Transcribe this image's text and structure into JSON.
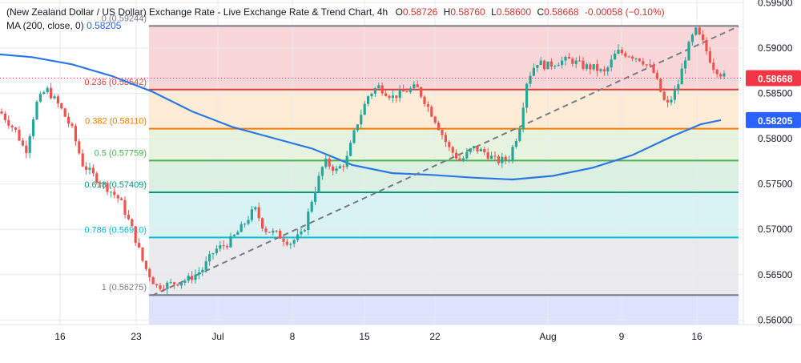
{
  "header": {
    "title": "(New Zealand Dollar / US Dollar) Exchange Rate - Live Exchange Rate & Trend Chart, 4h",
    "open_label": "O",
    "open": "0.58726",
    "high_label": "H",
    "high": "0.58760",
    "low_label": "L",
    "low": "0.58600",
    "close_label": "C",
    "close": "0.58668",
    "change": "-0.00058 (−0.10%)",
    "ma_label": "MA (200, close, 0)",
    "ma_value": "0.58205"
  },
  "colors": {
    "up": "#26a69a",
    "down": "#ef5350",
    "ma": "#2b78e4",
    "trend": "#787b86",
    "price_tag": "#f23645",
    "ma_tag": "#2962ff"
  },
  "chart_data": {
    "type": "candlestick",
    "ylim": [
      0.5595,
      0.5953
    ],
    "y_ticks": [
      "0.59500",
      "0.59000",
      "0.58500",
      "0.58000",
      "0.57500",
      "0.57000",
      "0.56500",
      "0.56000"
    ],
    "x_ticks": [
      "16",
      "23",
      "Jul",
      "8",
      "15",
      "22",
      "Aug",
      "9",
      "16"
    ],
    "grid": true,
    "fib_levels": [
      {
        "ratio": "0",
        "value": 0.59244,
        "label": "0 (0.59244)",
        "color": "#787b86",
        "fill": "#f7c5c8"
      },
      {
        "ratio": "0.236",
        "value": 0.58542,
        "label": "0.236 (0.58542)",
        "color": "#e03c3c",
        "fill": "#fde4c6"
      },
      {
        "ratio": "0.382",
        "value": 0.5811,
        "label": "0.382 (0.58110)",
        "color": "#f57c00",
        "fill": "#dcefd2"
      },
      {
        "ratio": "0.5",
        "value": 0.57759,
        "label": "0.5 (0.57759)",
        "color": "#4caf50",
        "fill": "#cce9d6"
      },
      {
        "ratio": "0.618",
        "value": 0.57409,
        "label": "0.618 (0.57409)",
        "color": "#089981",
        "fill": "#c9eef0"
      },
      {
        "ratio": "0.786",
        "value": 0.5691,
        "label": "0.786 (0.56910)",
        "color": "#00bcd4",
        "fill": "#e3e3e6"
      },
      {
        "ratio": "1",
        "value": 0.56275,
        "label": "1 (0.56275)",
        "color": "#787b86",
        "fill": "#d4dcfc"
      }
    ],
    "price_tag": "0.58668",
    "ma_tag": "0.58205",
    "series": [
      {
        "name": "MA (200, close, 0)",
        "kind": "line",
        "points": [
          [
            0,
            0.5893
          ],
          [
            40,
            0.589
          ],
          [
            90,
            0.5882
          ],
          [
            140,
            0.5869
          ],
          [
            190,
            0.5852
          ],
          [
            240,
            0.583
          ],
          [
            290,
            0.5813
          ],
          [
            340,
            0.5801
          ],
          [
            390,
            0.5789
          ],
          [
            440,
            0.5771
          ],
          [
            490,
            0.5762
          ],
          [
            540,
            0.576
          ],
          [
            590,
            0.5757
          ],
          [
            640,
            0.5755
          ],
          [
            690,
            0.5759
          ],
          [
            740,
            0.5768
          ],
          [
            790,
            0.5782
          ],
          [
            840,
            0.5803
          ],
          [
            875,
            0.5816
          ],
          [
            900,
            0.58205
          ]
        ]
      },
      {
        "name": "Trend",
        "kind": "dashed",
        "points": [
          [
            190,
            0.5627
          ],
          [
            922,
            0.5924
          ]
        ]
      },
      {
        "name": "Price",
        "kind": "candles",
        "anchors": [
          [
            0,
            0.583
          ],
          [
            20,
            0.5808
          ],
          [
            32,
            0.5785
          ],
          [
            45,
            0.5838
          ],
          [
            58,
            0.5855
          ],
          [
            75,
            0.5835
          ],
          [
            90,
            0.581
          ],
          [
            103,
            0.5772
          ],
          [
            118,
            0.5758
          ],
          [
            135,
            0.5745
          ],
          [
            150,
            0.5732
          ],
          [
            165,
            0.57
          ],
          [
            180,
            0.566
          ],
          [
            195,
            0.5637
          ],
          [
            215,
            0.564
          ],
          [
            235,
            0.5645
          ],
          [
            252,
            0.5655
          ],
          [
            268,
            0.5677
          ],
          [
            285,
            0.5685
          ],
          [
            300,
            0.57
          ],
          [
            318,
            0.5723
          ],
          [
            330,
            0.57
          ],
          [
            345,
            0.5695
          ],
          [
            362,
            0.5685
          ],
          [
            378,
            0.5695
          ],
          [
            390,
            0.5735
          ],
          [
            405,
            0.5775
          ],
          [
            420,
            0.5765
          ],
          [
            432,
            0.5775
          ],
          [
            445,
            0.5815
          ],
          [
            460,
            0.5848
          ],
          [
            472,
            0.5858
          ],
          [
            490,
            0.5846
          ],
          [
            505,
            0.5852
          ],
          [
            520,
            0.5857
          ],
          [
            530,
            0.5842
          ],
          [
            545,
            0.5818
          ],
          [
            560,
            0.579
          ],
          [
            575,
            0.5775
          ],
          [
            590,
            0.579
          ],
          [
            605,
            0.5785
          ],
          [
            620,
            0.5775
          ],
          [
            635,
            0.5778
          ],
          [
            648,
            0.581
          ],
          [
            658,
            0.5865
          ],
          [
            670,
            0.5885
          ],
          [
            682,
            0.588
          ],
          [
            697,
            0.5885
          ],
          [
            712,
            0.5887
          ],
          [
            728,
            0.588
          ],
          [
            742,
            0.5878
          ],
          [
            755,
            0.5872
          ],
          [
            770,
            0.5896
          ],
          [
            785,
            0.5893
          ],
          [
            800,
            0.5888
          ],
          [
            815,
            0.5875
          ],
          [
            832,
            0.5835
          ],
          [
            845,
            0.5855
          ],
          [
            858,
            0.5898
          ],
          [
            868,
            0.592
          ],
          [
            878,
            0.5905
          ],
          [
            890,
            0.588
          ],
          [
            906,
            0.58668
          ]
        ]
      }
    ]
  }
}
